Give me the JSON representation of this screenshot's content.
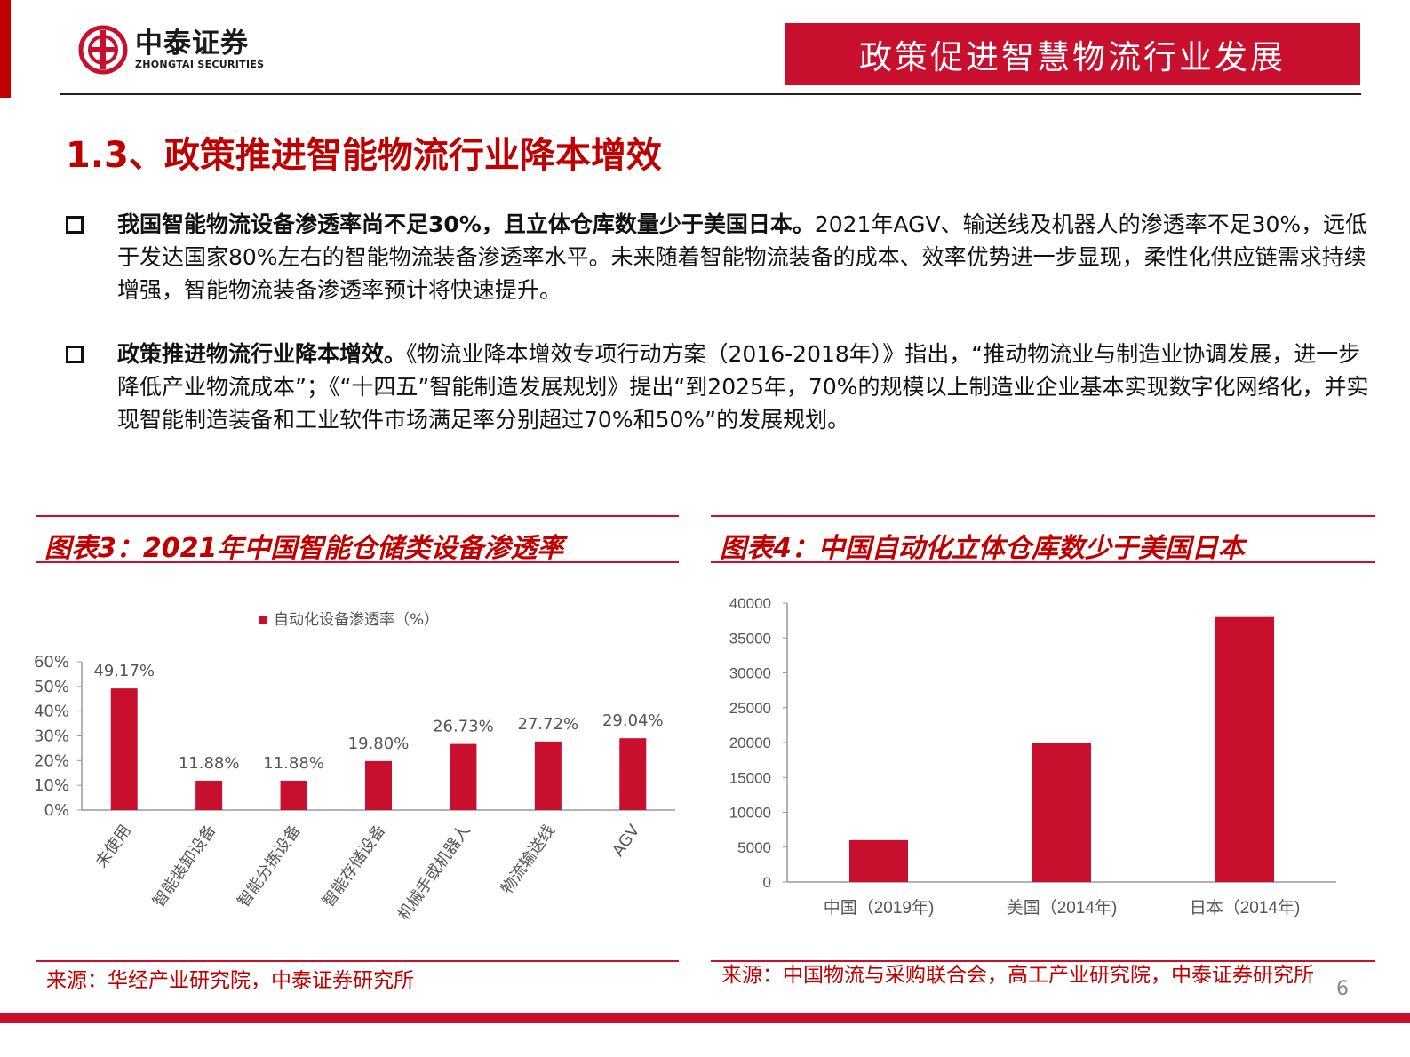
{
  "header": {
    "logo_cn": "中泰证券",
    "logo_en": "ZHONGTAI SECURITIES",
    "banner_title": "政策促进智慧物流行业发展",
    "brand_color": "#c8102e"
  },
  "section": {
    "title": "1.3、政策推进智能物流行业降本增效"
  },
  "bullets": [
    {
      "bold": "我国智能物流设备渗透率尚不足30%，且立体仓库数量少于美国日本。",
      "text": "2021年AGV、输送线及机器人的渗透率不足30%，远低于发达国家80%左右的智能物流装备渗透率水平。未来随着智能物流装备的成本、效率优势进一步显现，柔性化供应链需求持续增强，智能物流装备渗透率预计将快速提升。"
    },
    {
      "bold": "政策推进物流行业降本增效。",
      "text": "《物流业降本增效专项行动方案（2016-2018年）》指出，“推动物流业与制造业协调发展，进一步降低产业物流成本”；《“十四五”智能制造发展规划》提出“到2025年，70%的规模以上制造业企业基本实现数字化网络化，并实现智能制造装备和工业软件市场满足率分别超过70%和50%”的发展规划。"
    }
  ],
  "figures": {
    "fig3_title": "图表3：2021年中国智能仓储类设备渗透率",
    "fig3_source": "来源：华经产业研究院，中泰证券研究所",
    "fig4_title": "图表4：中国自动化立体仓库数少于美国日本",
    "fig4_source": "来源：中国物流与采购联合会，高工产业研究院，中泰证券研究所"
  },
  "chart_data": [
    {
      "type": "bar",
      "series": [
        {
          "name": "自动化设备渗透率（%）",
          "values": [
            49.17,
            11.88,
            11.88,
            19.8,
            26.73,
            27.72,
            29.04
          ],
          "labels": [
            "49.17%",
            "11.88%",
            "11.88%",
            "19.80%",
            "26.73%",
            "27.72%",
            "29.04%"
          ]
        }
      ],
      "categories": [
        "未使用",
        "智能装卸设备",
        "智能分拣设备",
        "智能存储设备",
        "机械手或机器人",
        "物流输送线",
        "AGV"
      ],
      "y_ticks": [
        "0%",
        "10%",
        "20%",
        "30%",
        "40%",
        "50%",
        "60%"
      ],
      "ylim": [
        0,
        60
      ],
      "legend": "top-left",
      "color": "#c8102e"
    },
    {
      "type": "bar",
      "categories": [
        "中国（2019年)",
        "美国（2014年)",
        "日本（2014年)"
      ],
      "values": [
        6000,
        20000,
        38000
      ],
      "y_ticks": [
        "0",
        "5000",
        "10000",
        "15000",
        "20000",
        "25000",
        "30000",
        "35000",
        "40000"
      ],
      "ylim": [
        0,
        40000
      ],
      "color": "#c8102e"
    }
  ],
  "page_number": "6"
}
